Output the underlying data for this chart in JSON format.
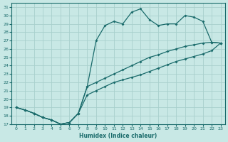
{
  "xlabel": "Humidex (Indice chaleur)",
  "bg_color": "#c8e8e5",
  "grid_color": "#a8d0cc",
  "line_color": "#1a6b6b",
  "xlim": [
    -0.5,
    23.5
  ],
  "ylim": [
    17,
    31.5
  ],
  "line_zigzag_x": [
    0,
    1,
    2,
    3,
    4,
    5,
    6,
    7,
    8,
    9,
    10,
    11,
    12,
    13,
    14,
    15,
    16,
    17,
    18,
    19,
    20,
    21,
    22,
    23
  ],
  "line_zigzag_y": [
    19.0,
    18.7,
    18.3,
    17.8,
    17.5,
    17.0,
    17.2,
    18.3,
    21.5,
    27.0,
    28.8,
    29.3,
    29.0,
    30.4,
    30.8,
    29.5,
    28.8,
    29.0,
    29.0,
    30.0,
    29.8,
    29.3,
    26.8,
    26.7
  ],
  "line_upper_x": [
    0,
    1,
    2,
    3,
    4,
    5,
    6,
    7,
    8,
    9,
    10,
    11,
    12,
    13,
    14,
    15,
    16,
    17,
    18,
    19,
    20,
    21,
    22,
    23
  ],
  "line_upper_y": [
    19.0,
    18.7,
    18.3,
    17.8,
    17.5,
    17.0,
    17.2,
    18.3,
    21.5,
    22.0,
    22.5,
    23.0,
    23.5,
    24.0,
    24.5,
    25.0,
    25.3,
    25.7,
    26.0,
    26.3,
    26.5,
    26.7,
    26.8,
    26.7
  ],
  "line_lower_x": [
    0,
    1,
    2,
    3,
    4,
    5,
    6,
    7,
    8,
    9,
    10,
    11,
    12,
    13,
    14,
    15,
    16,
    17,
    18,
    19,
    20,
    21,
    22,
    23
  ],
  "line_lower_y": [
    19.0,
    18.7,
    18.3,
    17.8,
    17.5,
    17.0,
    17.2,
    18.3,
    20.5,
    21.0,
    21.5,
    22.0,
    22.3,
    22.6,
    22.9,
    23.3,
    23.7,
    24.1,
    24.5,
    24.8,
    25.1,
    25.4,
    25.8,
    26.7
  ]
}
